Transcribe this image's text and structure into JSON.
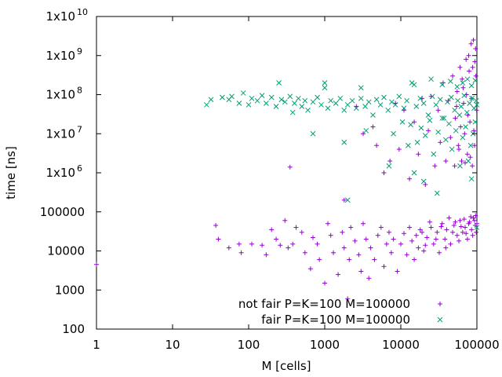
{
  "chart_data": {
    "type": "scatter",
    "xlabel": "M [cells]",
    "ylabel": "time [ns]",
    "x_scale": "log",
    "y_scale": "log",
    "xlim": [
      1,
      100000
    ],
    "ylim": [
      100,
      10000000000
    ],
    "x_ticks": [
      {
        "value": 1,
        "label": "1"
      },
      {
        "value": 10,
        "label": "10"
      },
      {
        "value": 100,
        "label": "100"
      },
      {
        "value": 1000,
        "label": "1000"
      },
      {
        "value": 10000,
        "label": "10000"
      },
      {
        "value": 100000,
        "label": "100000"
      }
    ],
    "y_ticks": [
      {
        "value": 100,
        "label": "100"
      },
      {
        "value": 1000,
        "label": "1000"
      },
      {
        "value": 10000,
        "label": "10000"
      },
      {
        "value": 100000,
        "label": "100000"
      },
      {
        "value": 1000000,
        "label": "1x10",
        "exp": "6"
      },
      {
        "value": 10000000,
        "label": "1x10",
        "exp": "7"
      },
      {
        "value": 100000000,
        "label": "1x10",
        "exp": "8"
      },
      {
        "value": 1000000000,
        "label": "1x10",
        "exp": "9"
      },
      {
        "value": 10000000000,
        "label": "1x10",
        "exp": "10"
      }
    ],
    "grid": false,
    "legend_position": "bottom-right",
    "series": [
      {
        "name": "not fair P=K=100 M=100000",
        "marker": "plus",
        "color": "#9400d3",
        "points": [
          [
            1,
            4500
          ],
          [
            37,
            45000
          ],
          [
            40,
            20000
          ],
          [
            55,
            12000
          ],
          [
            75,
            15000
          ],
          [
            80,
            9000
          ],
          [
            110,
            15000
          ],
          [
            150,
            14000
          ],
          [
            170,
            8000
          ],
          [
            200,
            35000
          ],
          [
            230,
            20000
          ],
          [
            260,
            14000
          ],
          [
            300,
            60000
          ],
          [
            330,
            12000
          ],
          [
            350,
            1400000
          ],
          [
            380,
            15000
          ],
          [
            420,
            40000
          ],
          [
            500,
            30000
          ],
          [
            550,
            9000
          ],
          [
            650,
            3500
          ],
          [
            700,
            22000
          ],
          [
            800,
            15000
          ],
          [
            850,
            6000
          ],
          [
            1000,
            1500
          ],
          [
            1100,
            50000
          ],
          [
            1200,
            25000
          ],
          [
            1300,
            9000
          ],
          [
            1500,
            2500
          ],
          [
            1700,
            30000
          ],
          [
            1800,
            12000
          ],
          [
            2000,
            600
          ],
          [
            2100,
            6000
          ],
          [
            2200,
            40000
          ],
          [
            2500,
            18000
          ],
          [
            2800,
            8000
          ],
          [
            3000,
            3000
          ],
          [
            3200,
            50000
          ],
          [
            3500,
            20000
          ],
          [
            3800,
            2000
          ],
          [
            4000,
            12000
          ],
          [
            4500,
            6000
          ],
          [
            5000,
            25000
          ],
          [
            5500,
            40000
          ],
          [
            6000,
            4000
          ],
          [
            6500,
            15000
          ],
          [
            7000,
            30000
          ],
          [
            7500,
            9000
          ],
          [
            8000,
            20000
          ],
          [
            9000,
            3000
          ],
          [
            10000,
            15000
          ],
          [
            11000,
            28000
          ],
          [
            12000,
            8000
          ],
          [
            13000,
            40000
          ],
          [
            14000,
            18000
          ],
          [
            15000,
            6000
          ],
          [
            16000,
            25000
          ],
          [
            17000,
            12000
          ],
          [
            18000,
            35000
          ],
          [
            20000,
            10000
          ],
          [
            22000,
            22000
          ],
          [
            25000,
            40000
          ],
          [
            27000,
            15000
          ],
          [
            30000,
            30000
          ],
          [
            32000,
            9000
          ],
          [
            35000,
            50000
          ],
          [
            38000,
            20000
          ],
          [
            40000,
            35000
          ],
          [
            45000,
            15000
          ],
          [
            50000,
            45000
          ],
          [
            55000,
            25000
          ],
          [
            60000,
            60000
          ],
          [
            65000,
            30000
          ],
          [
            70000,
            40000
          ],
          [
            75000,
            20000
          ],
          [
            80000,
            55000
          ],
          [
            85000,
            35000
          ],
          [
            90000,
            70000
          ],
          [
            95000,
            45000
          ],
          [
            100000,
            50000
          ],
          [
            98000,
            30000
          ],
          [
            96000,
            80000
          ],
          [
            93000,
            60000
          ],
          [
            88000,
            25000
          ],
          [
            83000,
            75000
          ],
          [
            78000,
            50000
          ],
          [
            72000,
            28000
          ],
          [
            68000,
            65000
          ],
          [
            62000,
            42000
          ],
          [
            58000,
            18000
          ],
          [
            52000,
            55000
          ],
          [
            48000,
            30000
          ],
          [
            43000,
            70000
          ],
          [
            39000,
            12000
          ],
          [
            34000,
            42000
          ],
          [
            29000,
            20000
          ],
          [
            24000,
            55000
          ],
          [
            21000,
            14000
          ],
          [
            19000,
            30000
          ],
          [
            1800,
            200000
          ],
          [
            2600,
            50000000
          ],
          [
            3200,
            10000000
          ],
          [
            4300,
            15000000
          ],
          [
            6000,
            1000000
          ],
          [
            4800,
            5000000
          ],
          [
            7200,
            2000000
          ],
          [
            8500,
            60000000
          ],
          [
            9500,
            4000000
          ],
          [
            11000,
            40000000
          ],
          [
            13000,
            700000
          ],
          [
            15000,
            20000000
          ],
          [
            17000,
            3000000
          ],
          [
            19000,
            80000000
          ],
          [
            21000,
            500000
          ],
          [
            23000,
            12000000
          ],
          [
            25000,
            90000000
          ],
          [
            28000,
            1500000
          ],
          [
            31000,
            40000000
          ],
          [
            33000,
            6000000
          ],
          [
            36000,
            200000000
          ],
          [
            39000,
            2000000
          ],
          [
            42000,
            70000000
          ],
          [
            45000,
            8000000
          ],
          [
            48000,
            300000000
          ],
          [
            51000,
            1500000
          ],
          [
            54000,
            50000000
          ],
          [
            57000,
            5000000
          ],
          [
            60000,
            500000000
          ],
          [
            63000,
            2000000
          ],
          [
            66000,
            150000000
          ],
          [
            69000,
            10000000
          ],
          [
            72000,
            800000000
          ],
          [
            75000,
            3000000
          ],
          [
            78000,
            1000000000
          ],
          [
            81000,
            20000000
          ],
          [
            84000,
            2000000000
          ],
          [
            87000,
            1500000
          ],
          [
            90000,
            2500000000
          ],
          [
            93000,
            5000000
          ],
          [
            96000,
            1500000000
          ],
          [
            99000,
            40000000
          ],
          [
            97000,
            300000000
          ],
          [
            94000,
            700000000
          ],
          [
            91000,
            12000000
          ],
          [
            88000,
            500000000
          ],
          [
            85000,
            80000000
          ],
          [
            82000,
            2500000
          ],
          [
            79000,
            400000000
          ],
          [
            76000,
            30000000
          ],
          [
            73000,
            100000000
          ],
          [
            70000,
            1800000
          ],
          [
            67000,
            60000000
          ],
          [
            64000,
            250000000
          ],
          [
            61000,
            15000000
          ],
          [
            58000,
            4000000
          ],
          [
            55000,
            120000000
          ],
          [
            52000,
            25000000
          ]
        ]
      },
      {
        "name": "fair P=K=100 M=100000",
        "marker": "cross",
        "color": "#009e73",
        "points": [
          [
            28,
            55000000
          ],
          [
            32,
            75000000
          ],
          [
            45,
            85000000
          ],
          [
            55,
            75000000
          ],
          [
            60,
            90000000
          ],
          [
            75,
            60000000
          ],
          [
            85,
            110000000
          ],
          [
            100,
            55000000
          ],
          [
            110,
            80000000
          ],
          [
            130,
            70000000
          ],
          [
            150,
            95000000
          ],
          [
            170,
            60000000
          ],
          [
            200,
            85000000
          ],
          [
            230,
            50000000
          ],
          [
            250,
            200000000
          ],
          [
            270,
            75000000
          ],
          [
            300,
            65000000
          ],
          [
            350,
            90000000
          ],
          [
            380,
            35000000
          ],
          [
            400,
            60000000
          ],
          [
            450,
            80000000
          ],
          [
            500,
            50000000
          ],
          [
            550,
            70000000
          ],
          [
            600,
            40000000
          ],
          [
            700,
            65000000
          ],
          [
            800,
            85000000
          ],
          [
            900,
            55000000
          ],
          [
            1000,
            200000000
          ],
          [
            1100,
            45000000
          ],
          [
            1200,
            70000000
          ],
          [
            1400,
            60000000
          ],
          [
            1600,
            80000000
          ],
          [
            1800,
            40000000
          ],
          [
            2000,
            55000000
          ],
          [
            2300,
            70000000
          ],
          [
            2600,
            45000000
          ],
          [
            3000,
            80000000
          ],
          [
            3400,
            50000000
          ],
          [
            3800,
            65000000
          ],
          [
            4300,
            30000000
          ],
          [
            4800,
            75000000
          ],
          [
            5400,
            55000000
          ],
          [
            6000,
            85000000
          ],
          [
            6800,
            40000000
          ],
          [
            7600,
            65000000
          ],
          [
            8500,
            55000000
          ],
          [
            9500,
            90000000
          ],
          [
            11000,
            45000000
          ],
          [
            12000,
            70000000
          ],
          [
            14000,
            200000000
          ],
          [
            16000,
            50000000
          ],
          [
            18000,
            80000000
          ],
          [
            20000,
            60000000
          ],
          [
            23000,
            30000000
          ],
          [
            26000,
            90000000
          ],
          [
            29000,
            55000000
          ],
          [
            33000,
            75000000
          ],
          [
            37000,
            25000000
          ],
          [
            41000,
            65000000
          ],
          [
            46000,
            85000000
          ],
          [
            51000,
            40000000
          ],
          [
            56000,
            70000000
          ],
          [
            62000,
            50000000
          ],
          [
            68000,
            95000000
          ],
          [
            74000,
            35000000
          ],
          [
            80000,
            60000000
          ],
          [
            86000,
            80000000
          ],
          [
            92000,
            45000000
          ],
          [
            98000,
            70000000
          ],
          [
            100000,
            55000000
          ],
          [
            95000,
            20000000
          ],
          [
            89000,
            10000000
          ],
          [
            83000,
            5000000
          ],
          [
            77000,
            2000000
          ],
          [
            71000,
            15000000
          ],
          [
            65000,
            8000000
          ],
          [
            59000,
            30000000
          ],
          [
            53000,
            12000000
          ],
          [
            47000,
            4000000
          ],
          [
            43000,
            18000000
          ],
          [
            39000,
            7000000
          ],
          [
            35000,
            25000000
          ],
          [
            31000,
            11000000
          ],
          [
            27000,
            3000000
          ],
          [
            24000,
            22000000
          ],
          [
            21000,
            9000000
          ],
          [
            18500,
            14000000
          ],
          [
            16500,
            6000000
          ],
          [
            15000,
            1000000
          ],
          [
            13500,
            17000000
          ],
          [
            12500,
            5000000
          ],
          [
            10500,
            20000000
          ],
          [
            8000,
            10000000
          ],
          [
            7000,
            1500000
          ],
          [
            3500,
            12000000
          ],
          [
            1800,
            6000000
          ],
          [
            700,
            10000000
          ],
          [
            1000,
            150000000
          ],
          [
            3000,
            150000000
          ],
          [
            15000,
            180000000
          ],
          [
            25000,
            250000000
          ],
          [
            35000,
            180000000
          ],
          [
            45000,
            220000000
          ],
          [
            55000,
            160000000
          ],
          [
            65000,
            200000000
          ],
          [
            75000,
            250000000
          ],
          [
            85000,
            170000000
          ],
          [
            95000,
            230000000
          ],
          [
            2000,
            200000
          ],
          [
            30000,
            300000
          ],
          [
            20000,
            600000
          ],
          [
            60000,
            1500000
          ],
          [
            85000,
            700000
          ],
          [
            100000,
            40000
          ]
        ]
      }
    ],
    "legend": [
      {
        "label": "not fair P=K=100 M=100000",
        "marker": "plus",
        "color": "#9400d3"
      },
      {
        "label": "fair P=K=100 M=100000",
        "marker": "cross",
        "color": "#009e73"
      }
    ]
  }
}
